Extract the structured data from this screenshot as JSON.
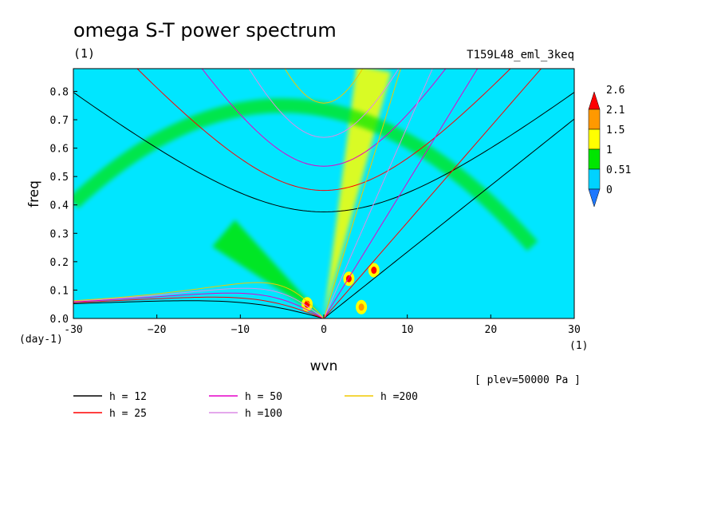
{
  "title": "omega S-T power spectrum",
  "subtitle": "(1)",
  "run_name": "T159L48_eml_3keq",
  "plev_note": "[ plev=50000 Pa ]",
  "chart_data": {
    "type": "heatmap",
    "title": "omega S-T power spectrum",
    "xlabel": "wvn",
    "ylabel": "freq",
    "x_unit": "(1)",
    "y_unit": "(day-1)",
    "xlim": [
      -30,
      30
    ],
    "ylim": [
      0,
      0.88
    ],
    "x_ticks": [
      -30,
      -20,
      -10,
      0,
      10,
      20,
      30
    ],
    "x_tick_labels": [
      "-30",
      "−20",
      "−10",
      "0",
      "10",
      "20",
      "30"
    ],
    "y_ticks": [
      0.0,
      0.1,
      0.2,
      0.3,
      0.4,
      0.5,
      0.6,
      0.7,
      0.8
    ],
    "y_tick_labels": [
      "0.0",
      "0.1",
      "0.2",
      "0.3",
      "0.4",
      "0.5",
      "0.6",
      "0.7",
      "0.8"
    ],
    "colorbar": {
      "levels": [
        0,
        0.51,
        1,
        1.5,
        2.1,
        2.6
      ],
      "labels": [
        "0",
        "0.51",
        "1",
        "1.5",
        "2.1",
        "2.6"
      ],
      "colors": [
        "#1e78ff",
        "#00d2ff",
        "#00e600",
        "#ffff00",
        "#ff9900",
        "#ff0000"
      ]
    },
    "background_color": "#00e6ff",
    "dispersion_curves": [
      {
        "label": "h = 12",
        "h": 12,
        "color": "#000000"
      },
      {
        "label": "h = 25",
        "h": 25,
        "color": "#ff0000"
      },
      {
        "label": "h = 50",
        "h": 50,
        "color": "#e600c8"
      },
      {
        "label": "h =100",
        "h": 100,
        "color": "#dc8ce6"
      },
      {
        "label": "h =200",
        "h": 200,
        "color": "#f0c800"
      }
    ],
    "power_features": [
      {
        "kind": "band",
        "from": [
          0,
          0
        ],
        "to": [
          6,
          0.88
        ],
        "level": 1.5
      },
      {
        "kind": "band",
        "from": [
          0,
          0
        ],
        "to": [
          -12,
          0.3
        ],
        "level": 1
      },
      {
        "kind": "arc",
        "center_x": -5,
        "freq": 0.75,
        "level": 1
      },
      {
        "kind": "spot",
        "x": -2,
        "y": 0.05,
        "level": 2.6
      },
      {
        "kind": "spot",
        "x": 6,
        "y": 0.17,
        "level": 2.6
      },
      {
        "kind": "spot",
        "x": 4.5,
        "y": 0.04,
        "level": 2.1
      },
      {
        "kind": "spot",
        "x": 3,
        "y": 0.14,
        "level": 2.6
      }
    ]
  }
}
